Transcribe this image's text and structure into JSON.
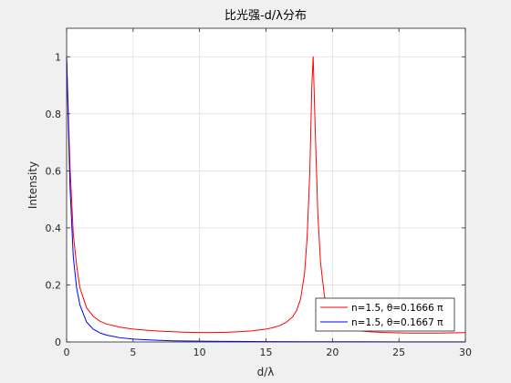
{
  "chart_data": {
    "type": "line",
    "title": "比光强-d/λ分布",
    "xlabel": "d/λ",
    "ylabel": "Intensity",
    "xlim": [
      0,
      30
    ],
    "ylim": [
      0,
      1.1
    ],
    "xticks": [
      0,
      5,
      10,
      15,
      20,
      25,
      30
    ],
    "xtick_labels": [
      "0",
      "5",
      "10",
      "15",
      "20",
      "25",
      "30"
    ],
    "yticks": [
      0,
      0.2,
      0.4,
      0.6,
      0.8,
      1
    ],
    "ytick_labels": [
      "0",
      "0.2",
      "0.4",
      "0.6",
      "0.8",
      "1"
    ],
    "grid": true,
    "legend_position": "bottom-right",
    "series": [
      {
        "name": "n=1.5, θ=0.1666 π",
        "color": "#ff0000",
        "x": [
          0,
          0.25,
          0.5,
          0.75,
          1,
          1.5,
          2,
          2.5,
          3,
          4,
          5,
          6,
          7,
          8,
          9,
          10,
          11,
          12,
          13,
          14,
          15,
          15.5,
          16,
          16.5,
          17,
          17.3,
          17.6,
          17.9,
          18.1,
          18.3,
          18.45,
          18.55,
          18.7,
          18.9,
          19.1,
          19.4,
          19.7,
          20,
          20.5,
          21,
          22,
          23,
          24,
          25,
          26,
          27,
          28,
          29,
          30
        ],
        "y": [
          1,
          0.62,
          0.38,
          0.27,
          0.19,
          0.12,
          0.09,
          0.073,
          0.063,
          0.052,
          0.045,
          0.041,
          0.038,
          0.036,
          0.034,
          0.033,
          0.033,
          0.034,
          0.036,
          0.039,
          0.045,
          0.05,
          0.057,
          0.068,
          0.088,
          0.11,
          0.15,
          0.24,
          0.37,
          0.6,
          0.9,
          1,
          0.75,
          0.45,
          0.28,
          0.16,
          0.105,
          0.078,
          0.058,
          0.048,
          0.039,
          0.035,
          0.033,
          0.032,
          0.031,
          0.031,
          0.031,
          0.032,
          0.033
        ]
      },
      {
        "name": "n=1.5, θ=0.1667 π",
        "color": "#0000ff",
        "x": [
          0,
          0.25,
          0.5,
          0.75,
          1,
          1.5,
          2,
          2.5,
          3,
          4,
          5,
          6,
          7,
          8,
          10,
          12,
          15,
          18,
          20,
          25,
          30
        ],
        "y": [
          1,
          0.55,
          0.3,
          0.19,
          0.13,
          0.07,
          0.045,
          0.032,
          0.024,
          0.015,
          0.01,
          0.0075,
          0.0055,
          0.004,
          0.0028,
          0.002,
          0.0013,
          0.0009,
          0.0007,
          0.0005,
          0.0003
        ]
      }
    ]
  }
}
